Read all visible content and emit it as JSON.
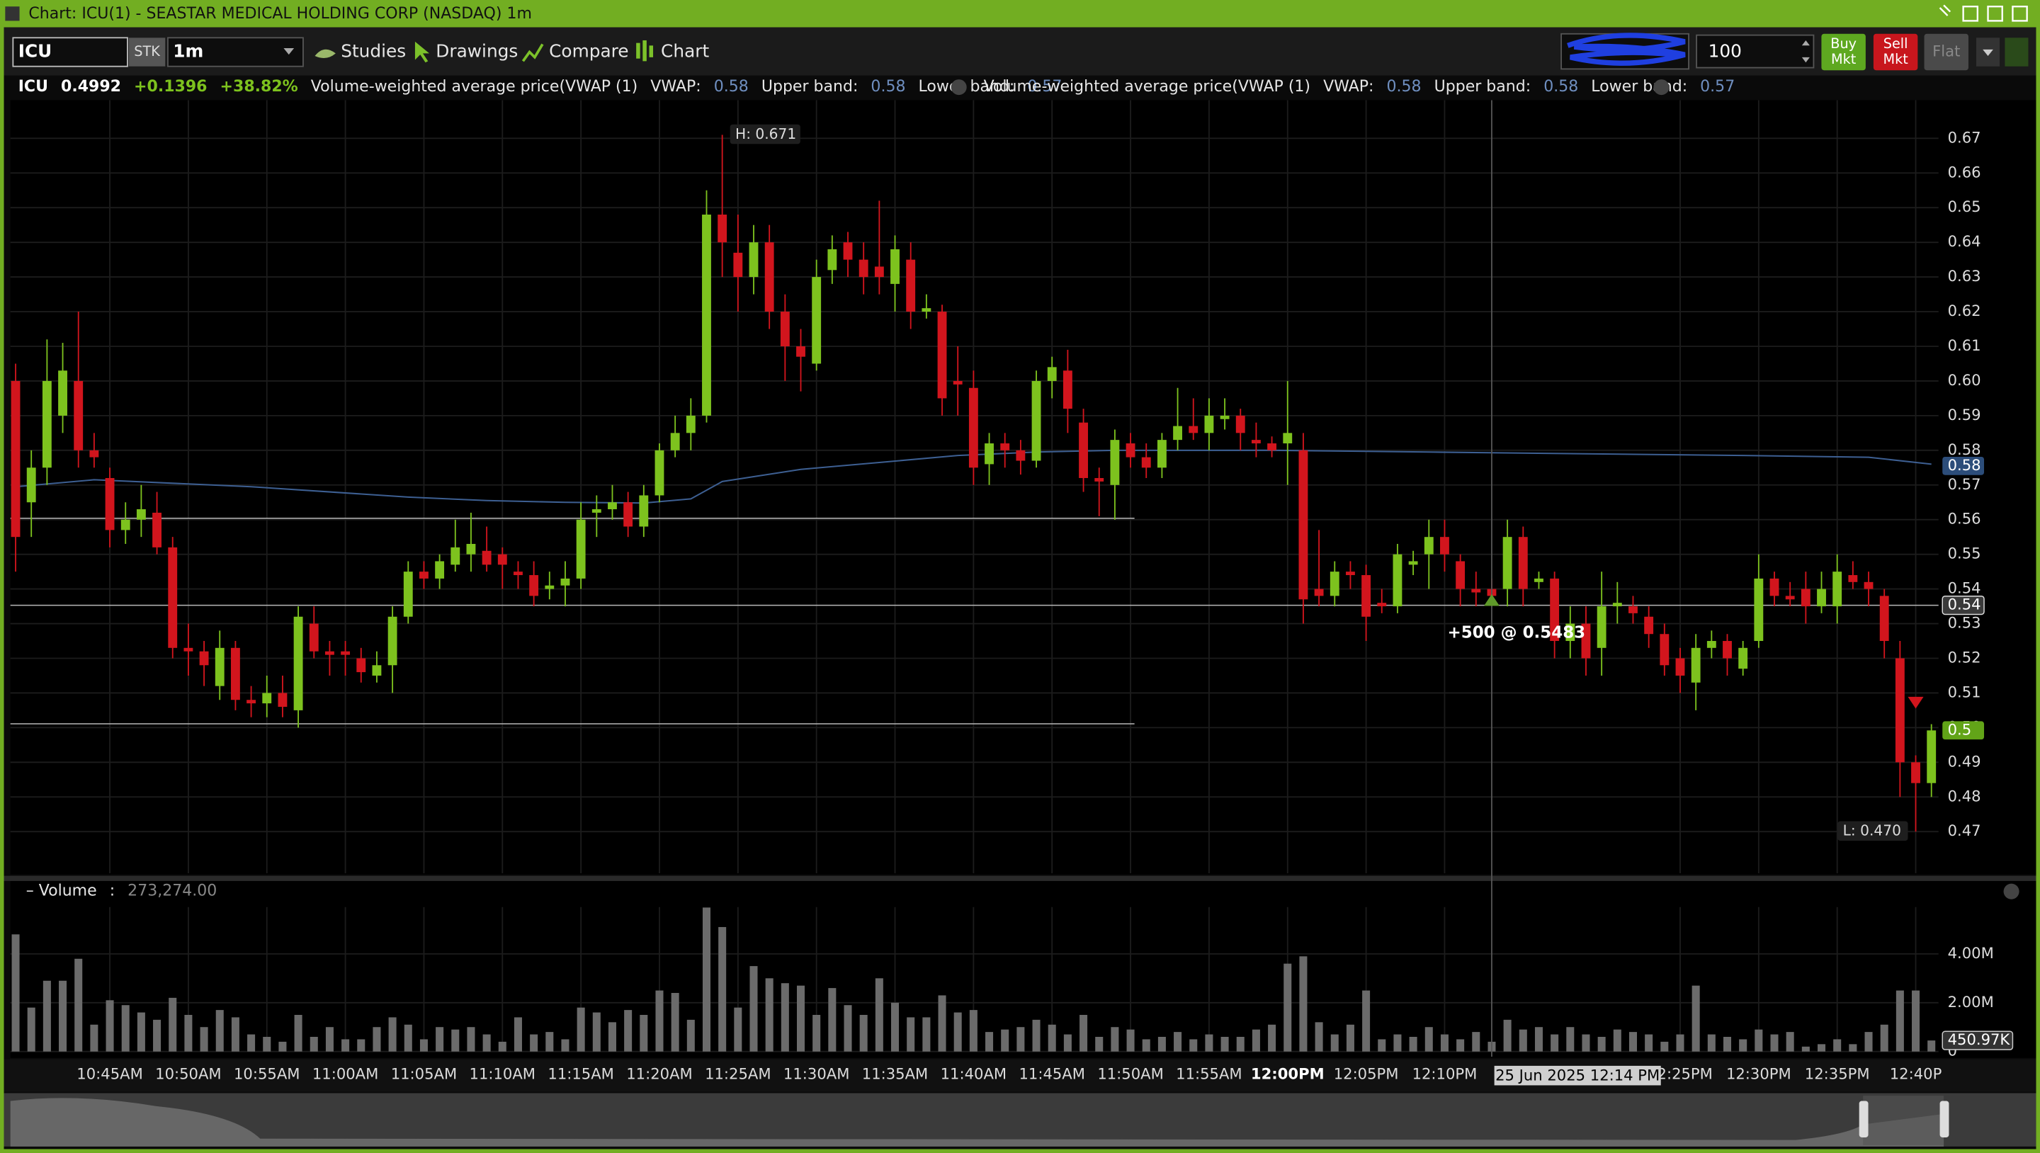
{
  "window": {
    "title": "Chart: ICU(1) - SEASTAR MEDICAL HOLDING CORP (NASDAQ) 1m"
  },
  "toolbar": {
    "symbol": "ICU",
    "sec_type": "STK",
    "interval": "1m",
    "menu": [
      "Studies",
      "Drawings",
      "Compare",
      "Chart"
    ],
    "quantity": "100",
    "buy": [
      "Buy",
      "Mkt"
    ],
    "sell": [
      "Sell",
      "Mkt"
    ],
    "flat": "Flat"
  },
  "legend": {
    "symbol": "ICU",
    "last": "0.4992",
    "change": "+0.1396",
    "change_pct": "+38.82%",
    "studies": [
      {
        "name": "Volume-weighted average price(VWAP  (1)",
        "vwap_label": "VWAP:",
        "vwap": "0.58",
        "upper_label": "Upper band:",
        "upper": "0.58",
        "lower_label": "Lower band:",
        "lower": "0.57"
      },
      {
        "name": "Volume-weighted average price(VWAP  (1)",
        "vwap_label": "VWAP:",
        "vwap": "0.58",
        "upper_label": "Upper band:",
        "upper": "0.58",
        "lower_label": "Lower band:",
        "lower": "0.57"
      }
    ]
  },
  "volume_header": {
    "title": "– Volume",
    "sep": ":",
    "value": "273,274.00"
  },
  "chart_data": {
    "type": "candlestick",
    "up_color": "#7dc21e",
    "down_color": "#d2151d",
    "open": [
      0.6,
      0.565,
      0.575,
      0.59,
      0.6,
      0.58,
      0.572,
      0.557,
      0.56,
      0.562,
      0.552,
      0.523,
      0.522,
      0.512,
      0.523,
      0.508,
      0.507,
      0.51,
      0.505,
      0.53,
      0.522,
      0.522,
      0.52,
      0.515,
      0.518,
      0.532,
      0.545,
      0.543,
      0.547,
      0.55,
      0.551,
      0.55,
      0.545,
      0.544,
      0.54,
      0.541,
      0.543,
      0.562,
      0.563,
      0.565,
      0.558,
      0.567,
      0.58,
      0.585,
      0.59,
      0.648,
      0.637,
      0.63,
      0.64,
      0.62,
      0.61,
      0.605,
      0.632,
      0.64,
      0.635,
      0.633,
      0.628,
      0.635,
      0.62,
      0.62,
      0.6,
      0.598,
      0.576,
      0.582,
      0.58,
      0.577,
      0.6,
      0.603,
      0.588,
      0.572,
      0.57,
      0.582,
      0.578,
      0.575,
      0.583,
      0.587,
      0.585,
      0.589,
      0.59,
      0.583,
      0.582,
      0.582,
      0.58,
      0.54,
      0.538,
      0.545,
      0.544,
      0.536,
      0.535,
      0.547,
      0.55,
      0.555,
      0.548,
      0.54,
      0.54,
      0.54,
      0.555,
      0.542,
      0.543,
      0.525,
      0.53,
      0.523,
      0.535,
      0.535,
      0.532,
      0.527,
      0.52,
      0.513,
      0.523,
      0.525,
      0.517,
      0.525,
      0.543,
      0.538,
      0.54,
      0.535,
      0.535,
      0.544,
      0.542,
      0.538,
      0.52,
      0.49,
      0.484
    ],
    "high": [
      0.605,
      0.58,
      0.612,
      0.611,
      0.62,
      0.585,
      0.575,
      0.565,
      0.57,
      0.568,
      0.555,
      0.53,
      0.525,
      0.528,
      0.525,
      0.512,
      0.515,
      0.515,
      0.535,
      0.535,
      0.525,
      0.525,
      0.523,
      0.522,
      0.535,
      0.548,
      0.548,
      0.55,
      0.56,
      0.562,
      0.558,
      0.552,
      0.548,
      0.548,
      0.545,
      0.548,
      0.565,
      0.567,
      0.57,
      0.568,
      0.57,
      0.582,
      0.59,
      0.595,
      0.655,
      0.671,
      0.648,
      0.645,
      0.645,
      0.625,
      0.615,
      0.635,
      0.642,
      0.643,
      0.64,
      0.652,
      0.642,
      0.64,
      0.625,
      0.622,
      0.61,
      0.603,
      0.585,
      0.585,
      0.583,
      0.603,
      0.607,
      0.609,
      0.592,
      0.575,
      0.586,
      0.585,
      0.582,
      0.585,
      0.598,
      0.595,
      0.595,
      0.595,
      0.592,
      0.588,
      0.584,
      0.6,
      0.585,
      0.557,
      0.548,
      0.548,
      0.547,
      0.54,
      0.553,
      0.551,
      0.56,
      0.56,
      0.55,
      0.545,
      0.543,
      0.56,
      0.558,
      0.545,
      0.545,
      0.535,
      0.535,
      0.545,
      0.542,
      0.538,
      0.535,
      0.53,
      0.523,
      0.527,
      0.528,
      0.527,
      0.525,
      0.55,
      0.545,
      0.542,
      0.545,
      0.545,
      0.55,
      0.548,
      0.545,
      0.54,
      0.525,
      0.492,
      0.501
    ],
    "low": [
      0.545,
      0.555,
      0.57,
      0.585,
      0.575,
      0.575,
      0.552,
      0.553,
      0.555,
      0.55,
      0.52,
      0.515,
      0.512,
      0.508,
      0.505,
      0.503,
      0.503,
      0.503,
      0.5,
      0.52,
      0.515,
      0.515,
      0.513,
      0.513,
      0.51,
      0.53,
      0.54,
      0.54,
      0.545,
      0.545,
      0.545,
      0.54,
      0.54,
      0.535,
      0.537,
      0.535,
      0.54,
      0.555,
      0.56,
      0.555,
      0.555,
      0.565,
      0.578,
      0.58,
      0.588,
      0.63,
      0.62,
      0.625,
      0.615,
      0.6,
      0.597,
      0.603,
      0.628,
      0.63,
      0.625,
      0.625,
      0.62,
      0.615,
      0.618,
      0.59,
      0.59,
      0.57,
      0.57,
      0.575,
      0.573,
      0.575,
      0.595,
      0.585,
      0.568,
      0.561,
      0.56,
      0.575,
      0.572,
      0.572,
      0.58,
      0.583,
      0.58,
      0.586,
      0.58,
      0.578,
      0.578,
      0.57,
      0.53,
      0.535,
      0.535,
      0.54,
      0.525,
      0.533,
      0.533,
      0.544,
      0.54,
      0.545,
      0.535,
      0.535,
      0.535,
      0.535,
      0.535,
      0.54,
      0.52,
      0.52,
      0.515,
      0.515,
      0.53,
      0.53,
      0.523,
      0.515,
      0.51,
      0.505,
      0.52,
      0.515,
      0.515,
      0.523,
      0.535,
      0.535,
      0.53,
      0.533,
      0.53,
      0.54,
      0.535,
      0.52,
      0.48,
      0.47,
      0.48
    ],
    "close": [
      0.555,
      0.575,
      0.6,
      0.603,
      0.58,
      0.578,
      0.557,
      0.56,
      0.563,
      0.552,
      0.523,
      0.522,
      0.518,
      0.523,
      0.508,
      0.507,
      0.51,
      0.506,
      0.532,
      0.522,
      0.521,
      0.521,
      0.516,
      0.518,
      0.532,
      0.545,
      0.543,
      0.548,
      0.552,
      0.553,
      0.547,
      0.547,
      0.544,
      0.538,
      0.541,
      0.543,
      0.56,
      0.563,
      0.565,
      0.558,
      0.567,
      0.58,
      0.585,
      0.59,
      0.648,
      0.64,
      0.63,
      0.64,
      0.62,
      0.61,
      0.607,
      0.63,
      0.638,
      0.635,
      0.63,
      0.63,
      0.638,
      0.62,
      0.621,
      0.595,
      0.599,
      0.575,
      0.582,
      0.58,
      0.577,
      0.6,
      0.604,
      0.592,
      0.572,
      0.571,
      0.583,
      0.578,
      0.575,
      0.583,
      0.587,
      0.585,
      0.59,
      0.59,
      0.585,
      0.582,
      0.58,
      0.585,
      0.537,
      0.538,
      0.545,
      0.544,
      0.532,
      0.535,
      0.55,
      0.548,
      0.555,
      0.55,
      0.54,
      0.539,
      0.538,
      0.555,
      0.54,
      0.543,
      0.525,
      0.53,
      0.52,
      0.535,
      0.536,
      0.533,
      0.527,
      0.518,
      0.515,
      0.523,
      0.525,
      0.52,
      0.523,
      0.543,
      0.538,
      0.537,
      0.535,
      0.54,
      0.545,
      0.542,
      0.54,
      0.525,
      0.49,
      0.484,
      0.4992
    ],
    "ylim": [
      0.458,
      0.681
    ],
    "yticks": [
      0.47,
      0.48,
      0.49,
      {
        "value": 0.5,
        "label": "0.50"
      },
      0.51,
      0.52,
      0.53,
      0.54,
      0.55,
      0.56,
      0.57,
      0.58,
      0.59,
      {
        "value": 0.6,
        "label": "0.60"
      },
      0.61,
      0.62,
      0.63,
      0.64,
      0.65,
      0.66,
      0.67
    ],
    "xticks": [
      {
        "value": 6,
        "label": "10:45AM"
      },
      {
        "value": 11,
        "label": "10:50AM"
      },
      {
        "value": 16,
        "label": "10:55AM"
      },
      {
        "value": 21,
        "label": "11:00AM"
      },
      {
        "value": 26,
        "label": "11:05AM"
      },
      {
        "value": 31,
        "label": "11:10AM"
      },
      {
        "value": 36,
        "label": "11:15AM"
      },
      {
        "value": 41,
        "label": "11:20AM"
      },
      {
        "value": 46,
        "label": "11:25AM"
      },
      {
        "value": 51,
        "label": "11:30AM"
      },
      {
        "value": 56,
        "label": "11:35AM"
      },
      {
        "value": 61,
        "label": "11:40AM"
      },
      {
        "value": 66,
        "label": "11:45AM"
      },
      {
        "value": 71,
        "label": "11:50AM"
      },
      {
        "value": 76,
        "label": "11:55AM"
      },
      {
        "value": 81,
        "label": "12:00PM"
      },
      {
        "value": 86,
        "label": "12:05PM"
      },
      {
        "value": 91,
        "label": "12:10PM"
      },
      {
        "value": 106,
        "label": "12:25PM"
      },
      {
        "value": 111,
        "label": "12:30PM"
      },
      {
        "value": 116,
        "label": "12:35PM"
      },
      {
        "value": 121,
        "label": "12:40P"
      }
    ],
    "grid": true,
    "vwap": {
      "color": "#3d5f92",
      "x": [
        0,
        5,
        10,
        15,
        20,
        25,
        30,
        35,
        40,
        43,
        45,
        50,
        55,
        60,
        65,
        70,
        80,
        90,
        100,
        110,
        118,
        122
      ],
      "values": [
        0.5695,
        0.5715,
        0.5705,
        0.5695,
        0.568,
        0.5665,
        0.5655,
        0.565,
        0.5648,
        0.566,
        0.571,
        0.5745,
        0.5765,
        0.5785,
        0.5795,
        0.58,
        0.58,
        0.5795,
        0.579,
        0.5785,
        0.578,
        0.576
      ]
    },
    "levels": [
      0.5604,
      0.5353,
      0.5011
    ],
    "badges": [
      {
        "value": 0.5755,
        "label": "0.58",
        "color": "#2c4d7a"
      },
      {
        "value": 0.5353,
        "label": "0.54",
        "color": "#3a3a3a"
      },
      {
        "value": 0.4992,
        "label": "0.5",
        "color": "#62a418"
      }
    ],
    "annotations": [
      {
        "text": "H: 0.671",
        "x": 45,
        "y": 0.671
      },
      {
        "text": "L: 0.470",
        "x": 121,
        "y": 0.47
      }
    ],
    "trades": [
      {
        "side": "buy",
        "x": 94,
        "y": 0.537,
        "label": "+500 @ 0.5483",
        "color": "#5f9a2a"
      },
      {
        "side": "sell",
        "x": 121,
        "y": 0.507,
        "color": "#d2151d"
      }
    ],
    "crosshair": {
      "x": 94,
      "label": "25 Jun 2025 12:14 PM"
    },
    "volume": {
      "color": "#6b6b6b",
      "ylim": [
        0,
        5920000
      ],
      "yticks": [
        0,
        {
          "value": 2000000,
          "label": "2.00M"
        },
        {
          "value": 4000000,
          "label": "4.00M"
        }
      ],
      "badge": {
        "value": 450970,
        "label": "450.97K"
      },
      "values": [
        4800000,
        1800000,
        2900000,
        2900000,
        3800000,
        1100000,
        2100000,
        1900000,
        1600000,
        1300000,
        2200000,
        1500000,
        1000000,
        1700000,
        1400000,
        700000,
        600000,
        400000,
        1500000,
        600000,
        1000000,
        500000,
        500000,
        1000000,
        1400000,
        1100000,
        500000,
        1000000,
        900000,
        1000000,
        700000,
        400000,
        1400000,
        700000,
        800000,
        500000,
        1800000,
        1600000,
        1200000,
        1700000,
        1500000,
        2500000,
        2400000,
        1300000,
        5900000,
        5100000,
        1800000,
        3500000,
        3000000,
        2800000,
        2700000,
        1500000,
        2600000,
        1900000,
        1500000,
        3000000,
        2000000,
        1400000,
        1400000,
        2300000,
        1600000,
        1700000,
        800000,
        900000,
        1000000,
        1300000,
        1100000,
        700000,
        1500000,
        600000,
        1000000,
        900000,
        500000,
        600000,
        800000,
        500000,
        700000,
        600000,
        600000,
        900000,
        1100000,
        3600000,
        3900000,
        1200000,
        700000,
        1100000,
        2500000,
        500000,
        700000,
        600000,
        1000000,
        700000,
        500000,
        800000,
        400000,
        1300000,
        900000,
        1000000,
        700000,
        1000000,
        700000,
        600000,
        900000,
        800000,
        700000,
        400000,
        700000,
        2700000,
        700000,
        600000,
        500000,
        900000,
        700000,
        800000,
        200000,
        300000,
        500000,
        300000,
        800000,
        1100000,
        2500000,
        2500000,
        450970
      ]
    }
  }
}
